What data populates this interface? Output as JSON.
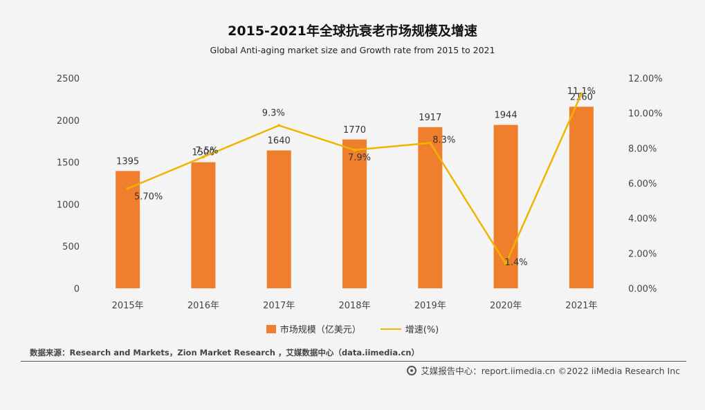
{
  "chart_data": {
    "type": "bar",
    "title": "2015-2021年全球抗衰老市场规模及增速",
    "subtitle": "Global Anti-aging market size and Growth rate from 2015 to 2021",
    "categories": [
      "2015年",
      "2016年",
      "2017年",
      "2018年",
      "2019年",
      "2020年",
      "2021年"
    ],
    "series": [
      {
        "name": "市场规模（亿美元）",
        "type": "bar",
        "axis": "left",
        "color": "#ef7f2d",
        "values": [
          1395,
          1500,
          1640,
          1770,
          1917,
          1944,
          2160
        ],
        "labels": [
          "1395",
          "1500",
          "1640",
          "1770",
          "1917",
          "1944",
          "2160"
        ]
      },
      {
        "name": "增速(%)",
        "type": "line",
        "axis": "right",
        "color": "#f0b400",
        "values": [
          5.7,
          7.5,
          9.3,
          7.9,
          8.3,
          1.4,
          11.1
        ],
        "labels": [
          "5.70%",
          "7.5%",
          "9.3%",
          "7.9%",
          "8.3%",
          "1.4%",
          "11.1%"
        ]
      }
    ],
    "ylim": [
      0,
      2500
    ],
    "y_ticks": [
      "0",
      "500",
      "1000",
      "1500",
      "2000",
      "2500"
    ],
    "y2lim": [
      0,
      12
    ],
    "y2_ticks": [
      "0.00%",
      "2.00%",
      "4.00%",
      "6.00%",
      "8.00%",
      "10.00%",
      "12.00%"
    ],
    "grid": false,
    "legend_position": "bottom"
  },
  "legend": {
    "bar_label": "市场规模（亿美元）",
    "line_label": "增速(%)"
  },
  "source": "数据来源：Research and Markets，Zion Market Research ，艾媒数据中心（data.iimedia.cn）",
  "footer": "艾媒报告中心：report.iimedia.cn   ©2022  iiMedia Research  Inc"
}
